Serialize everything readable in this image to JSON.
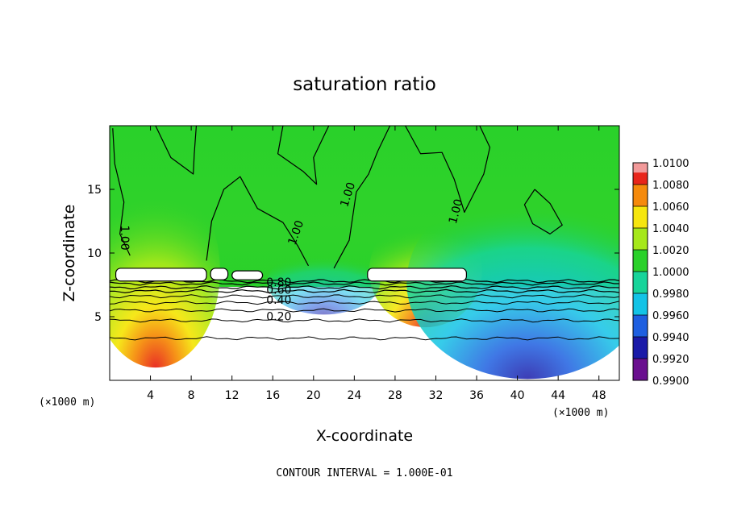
{
  "chart_data": {
    "type": "heatmap",
    "title": "saturation ratio",
    "xlabel": "X-coordinate",
    "ylabel": "Z-coordinate",
    "x_unit_label": "(×1000 m)",
    "x_ticks": [
      4,
      8,
      12,
      16,
      20,
      24,
      28,
      32,
      36,
      40,
      44,
      48
    ],
    "x_tick_labels": [
      "4",
      "8",
      "12",
      "16",
      "20",
      "24",
      "28",
      "32",
      "36",
      "40",
      "44",
      "48"
    ],
    "y_ticks": [
      5,
      10,
      15
    ],
    "y_tick_labels": [
      "5",
      "10",
      "15"
    ],
    "xlim": [
      0,
      50
    ],
    "ylim": [
      0,
      20
    ],
    "colorbar": {
      "levels": [
        0.99,
        0.992,
        0.994,
        0.996,
        0.998,
        1.0,
        1.002,
        1.004,
        1.006,
        1.008,
        1.01
      ],
      "labels": [
        "0.9900",
        "0.9920",
        "0.9940",
        "0.9960",
        "0.9980",
        "1.0000",
        "1.0020",
        "1.0040",
        "1.0060",
        "1.0080",
        "1.0100"
      ],
      "colors": [
        "#6a0f8f",
        "#1a1aa8",
        "#1e5fe0",
        "#13c3e6",
        "#17d49a",
        "#2ad12a",
        "#a6e81a",
        "#f6e60e",
        "#f58a0c",
        "#e8251a",
        "#f29a9a"
      ]
    },
    "contour_labels": [
      {
        "text": "1.00",
        "x": 1.1,
        "z": 11.2,
        "rotate": 90
      },
      {
        "text": "1.00",
        "x": 18.6,
        "z": 11.5,
        "rotate": -70
      },
      {
        "text": "1.00",
        "x": 23.7,
        "z": 14.5,
        "rotate": -72
      },
      {
        "text": "1.00",
        "x": 34.3,
        "z": 13.2,
        "rotate": -75
      },
      {
        "text": "0.80",
        "x": 16.6,
        "z": 7.4,
        "rotate": 0
      },
      {
        "text": "0.60",
        "x": 16.6,
        "z": 6.8,
        "rotate": 0
      },
      {
        "text": "0.40",
        "x": 16.6,
        "z": 6.0,
        "rotate": 0
      },
      {
        "text": "0.20",
        "x": 16.6,
        "z": 4.7,
        "rotate": 0
      }
    ],
    "contour_interval_text": "CONTOUR INTERVAL = 1.000E-01",
    "grid": false,
    "legend": "right"
  }
}
